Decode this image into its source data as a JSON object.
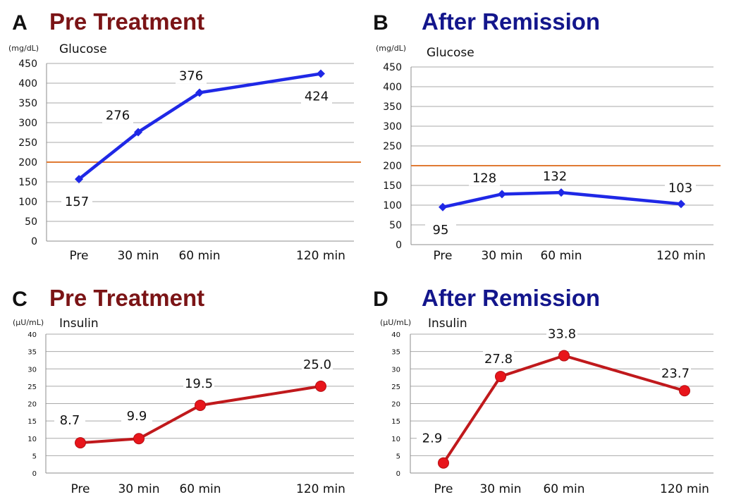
{
  "colors": {
    "pre_title": "#7b1416",
    "after_title": "#13168c",
    "glucose_line": "#1f28e6",
    "insulin_line": "#c0191c",
    "insulin_marker": "#e8151b",
    "threshold": "#e07a33"
  },
  "chart_data": [
    {
      "panel": "A",
      "title": "Pre Treatment",
      "type": "line",
      "yunit": "(mg/dL)",
      "ylabel": "Glucose",
      "categories": [
        "Pre",
        "30 min",
        "60 min",
        "120 min"
      ],
      "values": [
        157,
        276,
        376,
        424
      ],
      "labels": [
        "157",
        "276",
        "376",
        "424"
      ],
      "ylim": [
        0,
        450
      ],
      "yticks": [
        0,
        50,
        100,
        150,
        200,
        250,
        300,
        350,
        400,
        450
      ],
      "reference_line": 200,
      "grid": true,
      "marker": "diamond"
    },
    {
      "panel": "B",
      "title": "After Remission",
      "type": "line",
      "yunit": "(mg/dL)",
      "ylabel": "Glucose",
      "categories": [
        "Pre",
        "30 min",
        "60 min",
        "120 min"
      ],
      "values": [
        95,
        128,
        132,
        103
      ],
      "labels": [
        "95",
        "128",
        "132",
        "103"
      ],
      "ylim": [
        0,
        450
      ],
      "yticks": [
        0,
        50,
        100,
        150,
        200,
        250,
        300,
        350,
        400,
        450
      ],
      "reference_line": 200,
      "grid": true,
      "marker": "diamond"
    },
    {
      "panel": "C",
      "title": "Pre Treatment",
      "type": "line",
      "yunit": "(μU/mL)",
      "ylabel": "Insulin",
      "categories": [
        "Pre",
        "30 min",
        "60 min",
        "120 min"
      ],
      "values": [
        8.7,
        9.9,
        19.5,
        25.0
      ],
      "labels": [
        "8.7",
        "9.9",
        "19.5",
        "25.0"
      ],
      "ylim": [
        0,
        40
      ],
      "yticks": [
        0,
        5,
        10,
        15,
        20,
        25,
        30,
        35,
        40
      ],
      "grid": true,
      "marker": "circle"
    },
    {
      "panel": "D",
      "title": "After Remission",
      "type": "line",
      "yunit": "(μU/mL)",
      "ylabel": "Insulin",
      "categories": [
        "Pre",
        "30 min",
        "60 min",
        "120 min"
      ],
      "values": [
        2.9,
        27.8,
        33.8,
        23.7
      ],
      "labels": [
        "2.9",
        "27.8",
        "33.8",
        "23.7"
      ],
      "ylim": [
        0,
        40
      ],
      "yticks": [
        0,
        5,
        10,
        15,
        20,
        25,
        30,
        35,
        40
      ],
      "grid": true,
      "marker": "circle"
    }
  ]
}
